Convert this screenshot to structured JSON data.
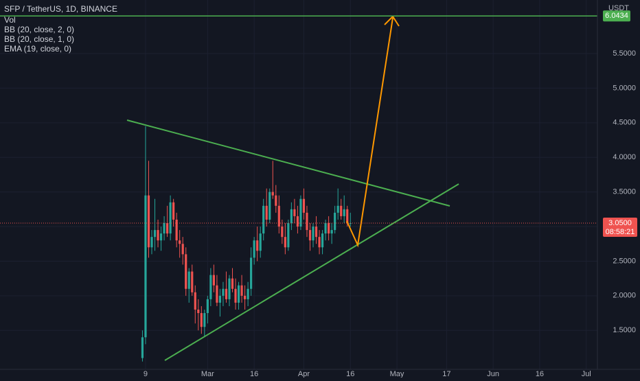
{
  "chart_data": {
    "type": "candlestick",
    "title": "SFP / TetherUS, 1D, BINANCE",
    "indicators": [
      "Vol",
      "BB (20, close, 2, 0)",
      "BB (20, close, 1, 0)",
      "EMA (19, close, 0)"
    ],
    "currency": "USDT",
    "x": [
      -1,
      0,
      1,
      2,
      3,
      4,
      5,
      6,
      7,
      8,
      9,
      10,
      11,
      12,
      13,
      14,
      15,
      16,
      17,
      18,
      19,
      20,
      21,
      22,
      23,
      24,
      25,
      26,
      27,
      28,
      29,
      30,
      31,
      32,
      33,
      34,
      35,
      36,
      37,
      38,
      39,
      40,
      41,
      42,
      43,
      44,
      45,
      46,
      47,
      48,
      49,
      50,
      51,
      52,
      53,
      54,
      55,
      56,
      57,
      58,
      59,
      60,
      61,
      62,
      63,
      64,
      65,
      66
    ],
    "open": [
      1.1,
      1.4,
      3.45,
      2.7,
      2.85,
      2.95,
      2.8,
      2.9,
      3.05,
      2.9,
      3.35,
      3.1,
      2.8,
      2.75,
      2.6,
      2.1,
      2.35,
      2.05,
      1.8,
      1.75,
      1.55,
      1.75,
      1.95,
      2.3,
      2.15,
      1.9,
      2.0,
      2.1,
      1.95,
      2.25,
      2.1,
      1.9,
      2.15,
      2.0,
      1.95,
      2.1,
      2.55,
      2.8,
      2.65,
      2.9,
      3.3,
      3.1,
      3.5,
      3.45,
      3.3,
      3.0,
      2.85,
      2.7,
      3.05,
      3.25,
      3.15,
      3.0,
      3.4,
      3.2,
      2.95,
      2.8,
      3.0,
      2.85,
      2.7,
      2.9,
      3.05,
      2.9,
      2.95,
      3.2,
      3.3,
      3.15,
      3.25,
      3.05
    ],
    "high": [
      1.5,
      4.45,
      3.95,
      2.95,
      3.4,
      3.1,
      3.0,
      3.15,
      3.3,
      3.45,
      3.4,
      3.2,
      2.95,
      2.85,
      2.7,
      2.4,
      2.45,
      2.15,
      1.95,
      1.85,
      1.8,
      2.0,
      2.4,
      2.45,
      2.3,
      2.1,
      2.2,
      2.35,
      2.3,
      2.4,
      2.25,
      2.2,
      2.3,
      2.15,
      2.2,
      2.7,
      2.85,
      3.0,
      3.0,
      3.4,
      3.55,
      3.55,
      3.95,
      3.6,
      3.45,
      3.1,
      3.05,
      3.1,
      3.35,
      3.4,
      3.3,
      3.45,
      3.55,
      3.3,
      3.05,
      3.05,
      3.15,
      2.95,
      2.95,
      3.1,
      3.15,
      3.05,
      3.3,
      3.55,
      3.4,
      3.45,
      3.3,
      3.2
    ],
    "low": [
      1.05,
      1.3,
      2.55,
      2.6,
      2.65,
      2.7,
      2.65,
      2.8,
      2.85,
      2.8,
      3.0,
      2.7,
      2.55,
      2.45,
      2.0,
      1.9,
      2.0,
      1.6,
      1.5,
      1.45,
      1.4,
      1.6,
      1.85,
      2.05,
      1.85,
      1.7,
      1.85,
      1.9,
      1.85,
      2.05,
      1.8,
      1.8,
      1.9,
      1.8,
      1.85,
      2.0,
      2.45,
      2.5,
      2.55,
      2.8,
      3.0,
      3.05,
      3.4,
      3.2,
      2.9,
      2.75,
      2.6,
      2.65,
      2.95,
      3.05,
      2.9,
      2.95,
      3.1,
      2.85,
      2.65,
      2.7,
      2.75,
      2.6,
      2.6,
      2.8,
      2.8,
      2.75,
      2.9,
      3.1,
      3.1,
      3.05,
      3.0,
      3.0
    ],
    "close": [
      1.4,
      3.45,
      2.7,
      2.85,
      2.95,
      2.8,
      2.9,
      3.05,
      2.9,
      3.35,
      3.1,
      2.8,
      2.75,
      2.6,
      2.1,
      2.35,
      2.05,
      1.8,
      1.75,
      1.55,
      1.75,
      1.95,
      2.3,
      2.15,
      1.9,
      2.0,
      2.1,
      1.95,
      2.25,
      2.1,
      1.9,
      2.15,
      2.0,
      1.95,
      2.1,
      2.55,
      2.8,
      2.65,
      2.9,
      3.3,
      3.1,
      3.5,
      3.45,
      3.3,
      3.0,
      2.85,
      2.7,
      3.05,
      3.25,
      3.15,
      3.0,
      3.4,
      3.2,
      2.95,
      2.8,
      3.0,
      2.85,
      2.7,
      2.9,
      3.05,
      2.9,
      2.95,
      3.2,
      3.3,
      3.15,
      3.25,
      3.05,
      3.05
    ],
    "up_color": "#26a69a",
    "down_color": "#ef5350",
    "xlim": [
      -46.9,
      145.6
    ],
    "ylim": [
      0.937,
      6.274
    ],
    "xticks": [
      {
        "value": 0,
        "label": "9"
      },
      {
        "value": 20,
        "label": "Mar"
      },
      {
        "value": 35,
        "label": "16"
      },
      {
        "value": 51,
        "label": "Apr"
      },
      {
        "value": 66,
        "label": "16"
      },
      {
        "value": 81,
        "label": "May"
      },
      {
        "value": 97,
        "label": "17"
      },
      {
        "value": 112,
        "label": "Jun"
      },
      {
        "value": 127,
        "label": "16"
      },
      {
        "value": 142,
        "label": "Jul"
      }
    ],
    "yticks": [
      {
        "value": 1.5,
        "label": "1.5000"
      },
      {
        "value": 2,
        "label": "2.0000"
      },
      {
        "value": 2.5,
        "label": "2.5000"
      },
      {
        "value": 3,
        "label": "3.0000"
      },
      {
        "value": 3.5,
        "label": "3.5000"
      },
      {
        "value": 4,
        "label": "4.0000"
      },
      {
        "value": 4.5,
        "label": "4.5000"
      },
      {
        "value": 5,
        "label": "5.0000"
      },
      {
        "value": 5.5,
        "label": "5.5000"
      }
    ],
    "grid": true,
    "price_line": {
      "value": 3.05,
      "label": "3.0500"
    },
    "countdown": "08:58:21",
    "level_line": 6.0434
  }
}
